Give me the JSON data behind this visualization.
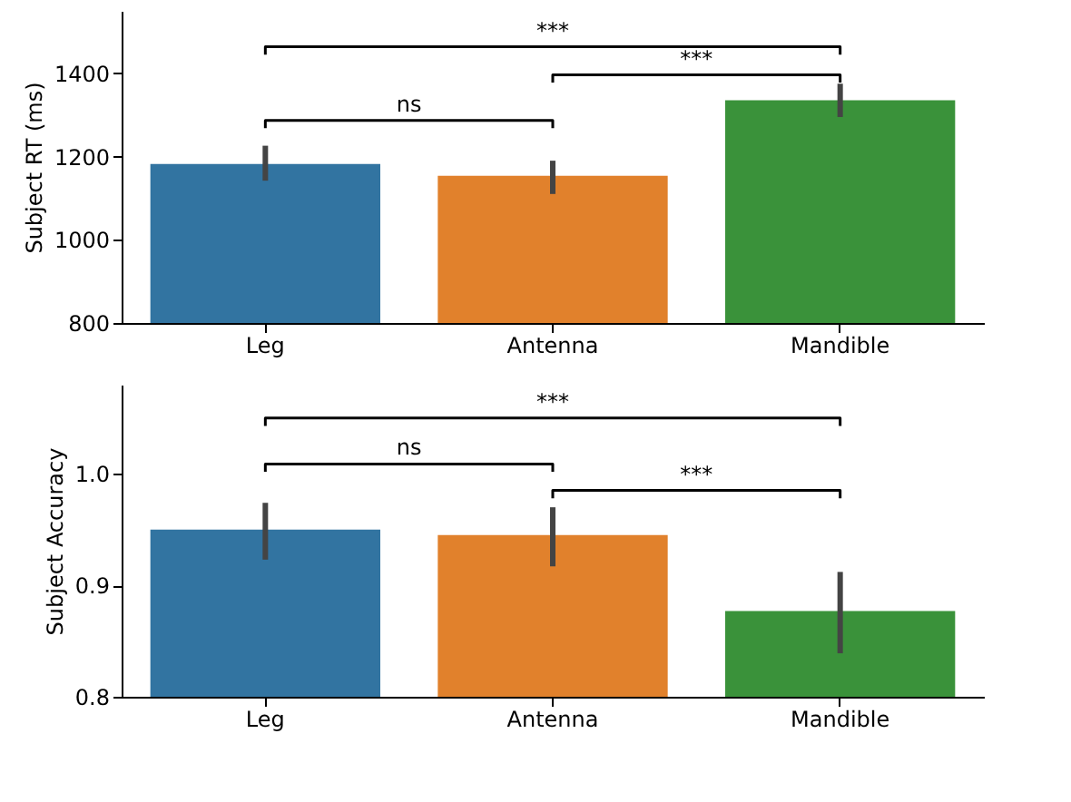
{
  "chart_data": [
    {
      "type": "bar",
      "ylabel": "Subject RT (ms)",
      "categories": [
        "Leg",
        "Antenna",
        "Mandible"
      ],
      "values": [
        1182,
        1154,
        1335
      ],
      "colors": [
        "#3274a1",
        "#e1812c",
        "#3a923a"
      ],
      "errors": [
        [
          1142,
          1226
        ],
        [
          1110,
          1190
        ],
        [
          1295,
          1375
        ]
      ],
      "ylim": [
        800,
        1550
      ],
      "yticks": [
        800,
        1000,
        1200,
        1400
      ],
      "grid": false,
      "annotations": [
        "***",
        "***",
        "ns"
      ]
    },
    {
      "type": "bar",
      "ylabel": "Subject Accuracy",
      "categories": [
        "Leg",
        "Antenna",
        "Mandible"
      ],
      "values": [
        0.95,
        0.945,
        0.877
      ],
      "colors": [
        "#3274a1",
        "#e1812c",
        "#3a923a"
      ],
      "errors": [
        [
          0.923,
          0.974
        ],
        [
          0.917,
          0.97
        ],
        [
          0.839,
          0.912
        ]
      ],
      "ylim": [
        0.8,
        1.08
      ],
      "yticks": [
        0.8,
        0.9,
        {
          "value": 1,
          "label": "1.0"
        }
      ],
      "grid": false,
      "annotations": [
        "***",
        "ns",
        "***"
      ]
    }
  ]
}
